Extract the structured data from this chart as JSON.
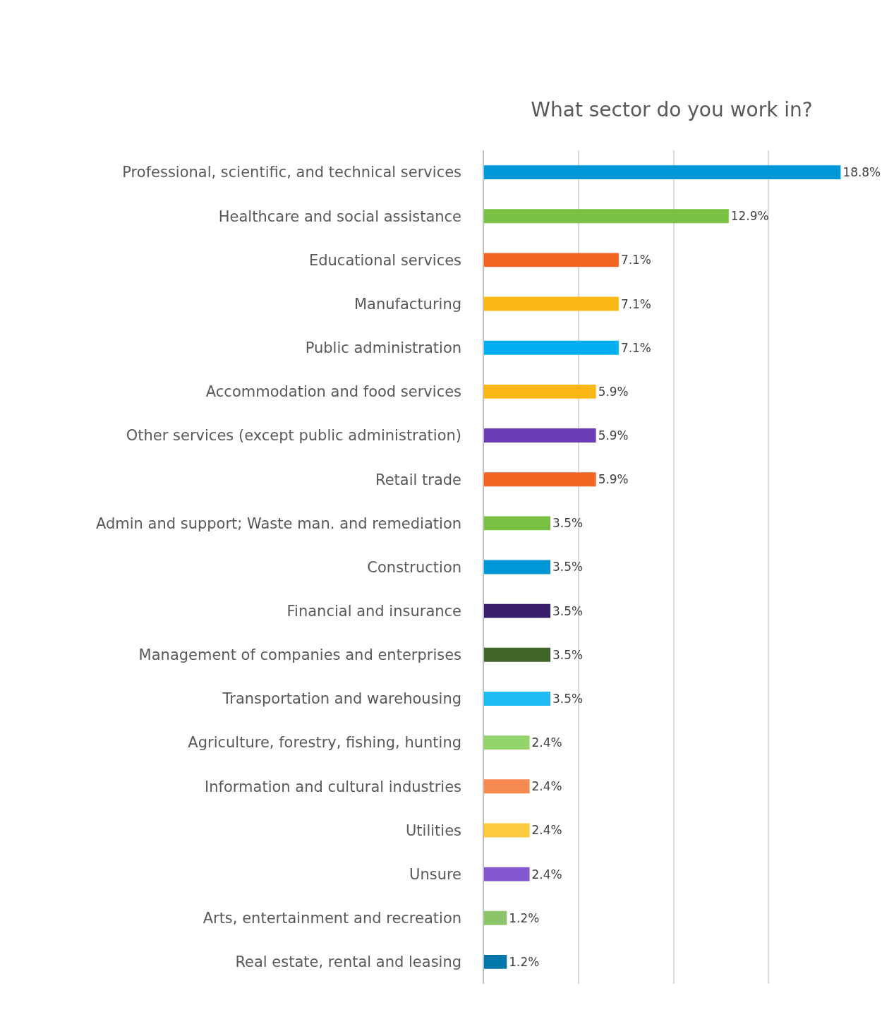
{
  "chart_data": {
    "type": "bar",
    "orientation": "horizontal",
    "title": "What sector do you work in?",
    "categories": [
      "Professional, scientific, and technical services",
      "Healthcare and social assistance",
      "Educational services",
      "Manufacturing",
      "Public administration",
      "Accommodation and food services",
      "Other services (except public administration)",
      "Retail trade",
      "Admin and support; Waste man. and remediation",
      "Construction",
      "Financial and insurance",
      "Management of companies and enterprises",
      "Transportation and warehousing",
      "Agriculture, forestry, fishing, hunting",
      "Information and cultural industries",
      "Utilities",
      "Unsure",
      "Arts, entertainment and recreation",
      "Real estate, rental and leasing"
    ],
    "values": [
      18.8,
      12.9,
      7.1,
      7.1,
      7.1,
      5.9,
      5.9,
      5.9,
      3.5,
      3.5,
      3.5,
      3.5,
      3.5,
      2.4,
      2.4,
      2.4,
      2.4,
      1.2,
      1.2
    ],
    "value_labels": [
      "18.8%",
      "12.9%",
      "7.1%",
      "7.1%",
      "7.1%",
      "5.9%",
      "5.9%",
      "5.9%",
      "3.5%",
      "3.5%",
      "3.5%",
      "3.5%",
      "3.5%",
      "2.4%",
      "2.4%",
      "2.4%",
      "2.4%",
      "1.2%",
      "1.2%"
    ],
    "colors": [
      "#0097d7",
      "#7ac143",
      "#f26522",
      "#fbb714",
      "#00b0f0",
      "#fbb714",
      "#6a3cb5",
      "#f26522",
      "#7ac143",
      "#0097d7",
      "#3b1f6b",
      "#3f6428",
      "#1fbbf5",
      "#92d36a",
      "#f6894f",
      "#fdc93f",
      "#8257cf",
      "#8cc46a",
      "#0077a8"
    ],
    "grid": "x",
    "tick_labels": "y"
  }
}
